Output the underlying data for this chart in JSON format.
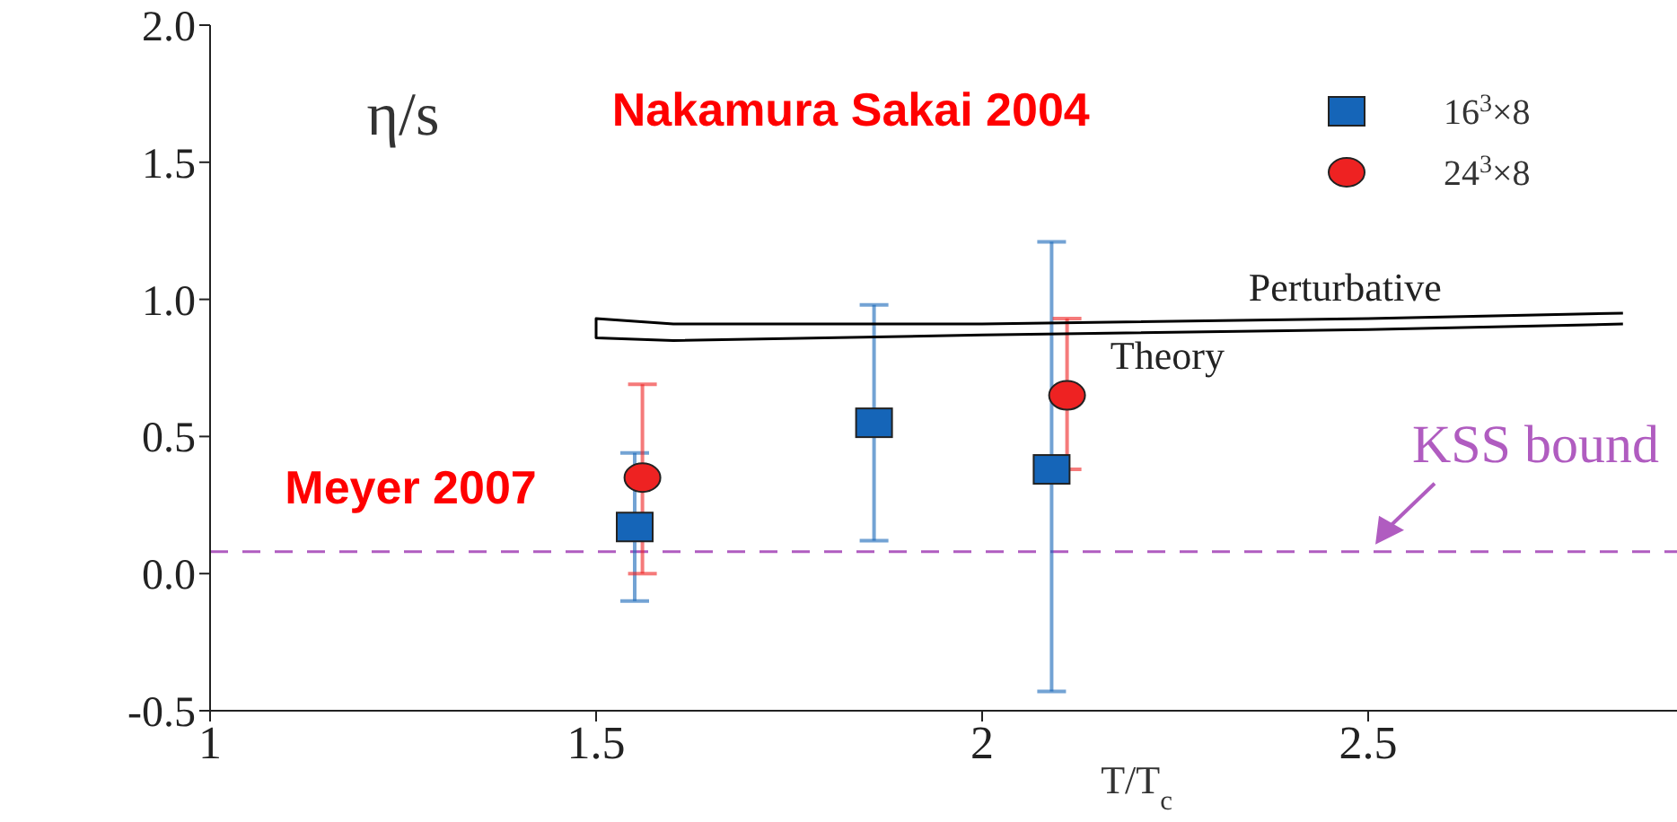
{
  "chart_data": {
    "type": "scatter",
    "xlabel": "T/T$_{c}$",
    "ylabel": "η/s",
    "xlim": [
      1,
      2.9
    ],
    "ylim": [
      -0.5,
      2.0
    ],
    "xticks": [
      1,
      1.5,
      2,
      2.5
    ],
    "yticks": [
      {
        "value": -0.5,
        "label": "-0.5"
      },
      {
        "value": 0,
        "label": "0.0"
      },
      {
        "value": 0.5,
        "label": "0.5"
      },
      {
        "value": 1,
        "label": "1.0"
      },
      {
        "value": 1.5,
        "label": "1.5"
      },
      {
        "value": 2,
        "label": "2.0"
      }
    ],
    "legend": "top right",
    "series": [
      {
        "name": "16$^{3}$×8",
        "marker": "square",
        "color": "#1565b8",
        "x": [
          1.55,
          1.86,
          2.09
        ],
        "values": [
          0.17,
          0.55,
          0.38
        ],
        "errors": [
          [
            -0.1,
            0.44
          ],
          [
            0.12,
            0.98
          ],
          [
            -0.43,
            1.21
          ]
        ]
      },
      {
        "name": "24$^{3}$×8",
        "marker": "circle",
        "color": "#ee2222",
        "x": [
          1.56,
          2.11
        ],
        "values": [
          0.35,
          0.65
        ],
        "errors": [
          [
            0.0,
            0.69
          ],
          [
            0.38,
            0.93
          ]
        ]
      },
      {
        "type": "line",
        "marker": "none",
        "color": "#000000",
        "x": [
          2.83,
          2.5,
          2.0,
          1.6,
          1.5,
          1.5,
          1.6,
          2.0,
          2.5,
          2.83
        ],
        "values": [
          0.95,
          0.93,
          0.91,
          0.91,
          0.93,
          0.86,
          0.85,
          0.87,
          0.89,
          0.91
        ]
      }
    ],
    "ref_lines": [
      {
        "axis": "y",
        "value": 0.08,
        "label": "KSS bound",
        "color": "#b05cc0",
        "line_style": "dashed"
      }
    ],
    "annotations": [
      "Nakamura  Sakai 2004",
      "Meyer 2007",
      "Perturbative",
      "Theory"
    ]
  }
}
